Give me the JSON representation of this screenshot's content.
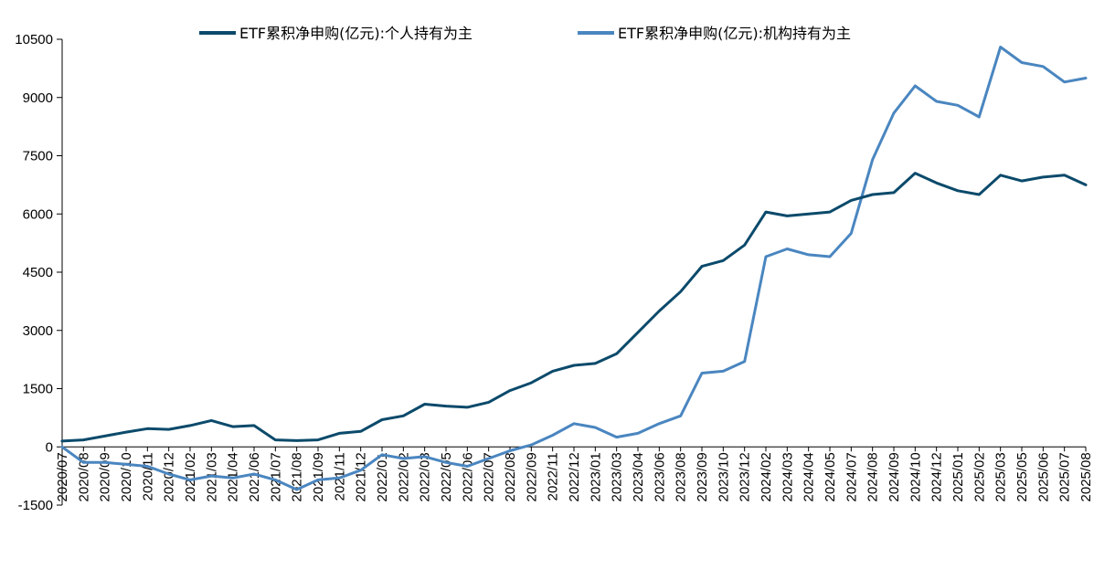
{
  "chart_data": {
    "type": "line",
    "title": "",
    "xlabel": "",
    "ylabel": "",
    "ylim": [
      -1500,
      10500
    ],
    "yticks": [
      -1500,
      0,
      1500,
      3000,
      4500,
      6000,
      7500,
      9000,
      10500
    ],
    "ytick_labels": [
      "-1500",
      "0",
      "1500",
      "3000",
      "4500",
      "6000",
      "7500",
      "9000",
      "10500"
    ],
    "categories": [
      "2020/07",
      "2020/08",
      "2020/09",
      "2020/10",
      "2020/11",
      "2020/12",
      "2021/02",
      "2021/03",
      "2021/04",
      "2021/06",
      "2021/07",
      "2021/08",
      "2021/09",
      "2021/11",
      "2021/12",
      "2022/01",
      "2022/02",
      "2022/03",
      "2022/05",
      "2022/06",
      "2022/07",
      "2022/08",
      "2022/09",
      "2022/11",
      "2022/12",
      "2023/01",
      "2023/03",
      "2023/04",
      "2023/06",
      "2023/08",
      "2023/09",
      "2023/10",
      "2023/12",
      "2024/02",
      "2024/03",
      "2024/04",
      "2024/05",
      "2024/07",
      "2024/08",
      "2024/09",
      "2024/10",
      "2024/12",
      "2025/01",
      "2025/02",
      "2025/03",
      "2025/05",
      "2025/06",
      "2025/07",
      "2025/08"
    ],
    "grid": false,
    "legend_position": "top",
    "series": [
      {
        "name": "ETF累积净申购(亿元):个人持有为主",
        "color": "#0b4a6b",
        "values": [
          150,
          180,
          280,
          380,
          470,
          450,
          550,
          680,
          520,
          550,
          180,
          160,
          180,
          350,
          400,
          700,
          800,
          1100,
          1050,
          1020,
          1150,
          1450,
          1650,
          1950,
          2100,
          2150,
          2400,
          2950,
          3500,
          4000,
          4650,
          4800,
          5200,
          6050,
          5950,
          6000,
          6050,
          6350,
          6500,
          6550,
          7050,
          6800,
          6600,
          6500,
          7000,
          6850,
          6950,
          7000,
          6750
        ]
      },
      {
        "name": "ETF累积净申购(亿元):机构持有为主",
        "color": "#4a86c0",
        "values": [
          0,
          -400,
          -400,
          -450,
          -500,
          -700,
          -850,
          -750,
          -800,
          -700,
          -850,
          -1100,
          -850,
          -800,
          -600,
          -200,
          -300,
          -250,
          -400,
          -500,
          -300,
          -100,
          50,
          300,
          600,
          500,
          250,
          350,
          600,
          800,
          1900,
          1950,
          2200,
          4900,
          5100,
          4950,
          4900,
          5500,
          7400,
          8600,
          9300,
          8900,
          8800,
          8500,
          10300,
          9900,
          9800,
          9400,
          9500
        ]
      }
    ]
  }
}
